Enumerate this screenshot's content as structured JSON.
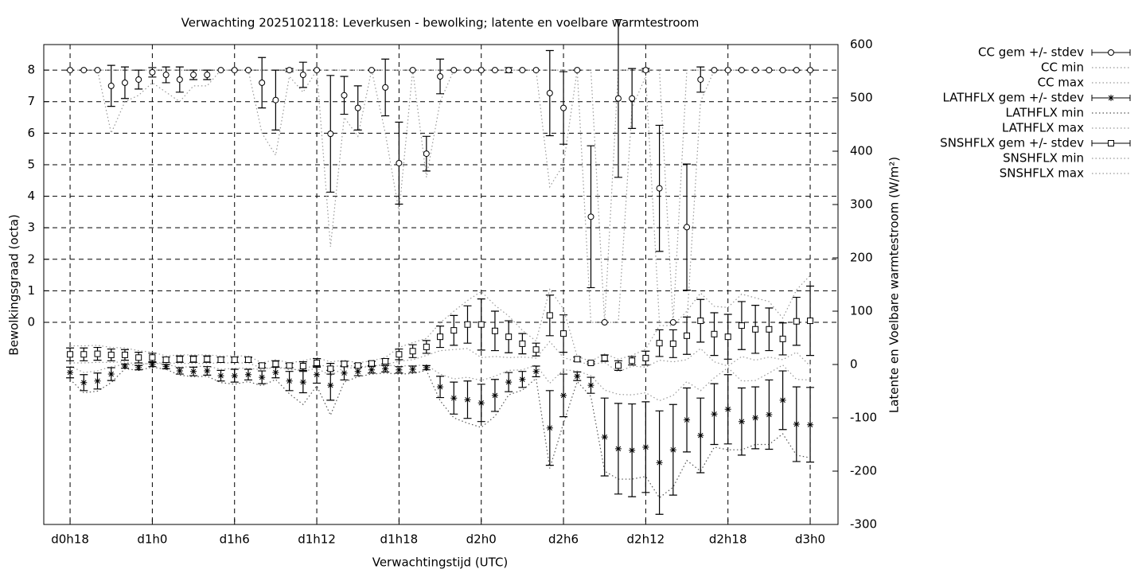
{
  "chart_data": {
    "type": "errorbar",
    "title": "Verwachting 2025102118: Leverkusen - bewolking; latente en voelbare warmtestroom",
    "xlabel": "Verwachtingstijd (UTC)",
    "ylabel": "Bewolkingsgraad (octa)",
    "y2label": "Latente en Voelbare warmtestroom (W/m²)",
    "grid": true,
    "legend": "outside-top-right",
    "x": [
      18,
      19,
      20,
      21,
      22,
      23,
      24,
      25,
      26,
      27,
      28,
      29,
      30,
      31,
      32,
      33,
      34,
      35,
      36,
      37,
      38,
      39,
      40,
      41,
      42,
      43,
      44,
      45,
      46,
      47,
      48,
      49,
      50,
      51,
      52,
      53,
      54,
      55,
      56,
      57,
      58,
      59,
      60,
      61,
      62,
      63,
      64,
      65,
      66,
      67,
      68,
      69,
      70,
      71,
      72
    ],
    "xlim": [
      16.08,
      74.03
    ],
    "xticks": [
      {
        "value": 18,
        "label": "d0h18"
      },
      {
        "value": 24,
        "label": "d1h0"
      },
      {
        "value": 30,
        "label": "d1h6"
      },
      {
        "value": 36,
        "label": "d1h12"
      },
      {
        "value": 42,
        "label": "d1h18"
      },
      {
        "value": 48,
        "label": "d2h0"
      },
      {
        "value": 54,
        "label": "d2h6"
      },
      {
        "value": 60,
        "label": "d2h12"
      },
      {
        "value": 66,
        "label": "d2h18"
      },
      {
        "value": 72,
        "label": "d3h0"
      }
    ],
    "ylim": [
      -6.41,
      8.81
    ],
    "yticks": [
      0,
      1,
      2,
      3,
      4,
      5,
      6,
      7,
      8
    ],
    "y2lim": [
      -300,
      600
    ],
    "y2ticks": [
      -300,
      -200,
      -100,
      0,
      100,
      200,
      300,
      400,
      500,
      600
    ],
    "series": [
      {
        "name": "CC gem +/- stdev",
        "color": "#000000",
        "marker": "circle",
        "axis": "y",
        "values": [
          8,
          8,
          8,
          7.5,
          7.6,
          7.7,
          7.93,
          7.85,
          7.7,
          7.85,
          7.85,
          8,
          8,
          8,
          7.6,
          7.05,
          8,
          7.85,
          8,
          5.98,
          7.2,
          6.8,
          8,
          7.45,
          5.05,
          8,
          5.35,
          7.8,
          8,
          8,
          8,
          8,
          8,
          8,
          8,
          7.27,
          6.8,
          8,
          3.35,
          0,
          7.1,
          7.1,
          8,
          4.25,
          0,
          3.02,
          7.7,
          8,
          8,
          8,
          8,
          8,
          8,
          8,
          8
        ],
        "errors": [
          0,
          0,
          0,
          0.65,
          0.5,
          0.3,
          0.15,
          0.25,
          0.4,
          0.15,
          0.15,
          0,
          0,
          0,
          0.8,
          0.95,
          0.05,
          0.4,
          0,
          1.85,
          0.6,
          0.7,
          0,
          0.9,
          1.3,
          0,
          0.55,
          0.55,
          0,
          0,
          0,
          0,
          0.08,
          0,
          0,
          1.35,
          1.15,
          0,
          2.25,
          0,
          2.5,
          0.95,
          0.05,
          2.0,
          0,
          2.0,
          0.4,
          0,
          0,
          0,
          0,
          0,
          0,
          0,
          0
        ]
      },
      {
        "name": "CC min",
        "color": "#999999",
        "style": "dotted",
        "axis": "y",
        "values": [
          8,
          8,
          8,
          6,
          7,
          7.2,
          7.6,
          7.3,
          7,
          7.5,
          7.5,
          8,
          8,
          8,
          6,
          5.3,
          7.8,
          7.3,
          8,
          2.4,
          6.5,
          5.9,
          8,
          6,
          3.5,
          8,
          4.6,
          7,
          8,
          8,
          8,
          8,
          8,
          8,
          8,
          4.3,
          5,
          8,
          0,
          0,
          0,
          6.8,
          7.8,
          0,
          0,
          0,
          7,
          8,
          8,
          8,
          8,
          8,
          8,
          8,
          8
        ]
      },
      {
        "name": "CC max",
        "color": "#999999",
        "style": "dotted",
        "axis": "y",
        "values": [
          8,
          8,
          8,
          8,
          8,
          8,
          8,
          8,
          8,
          8,
          8,
          8,
          8,
          8,
          8,
          8,
          8,
          8,
          8,
          8,
          8,
          8,
          8,
          8,
          8,
          8,
          8,
          8,
          8,
          8,
          8,
          8,
          8,
          8,
          8,
          8,
          8,
          8,
          8,
          0,
          8,
          8,
          8,
          8,
          0,
          8,
          8,
          8,
          8,
          8,
          8,
          8,
          8,
          8,
          8
        ]
      },
      {
        "name": "LATHFLX gem +/- stdev",
        "color": "#000000",
        "marker": "star",
        "axis": "y2",
        "values": [
          -15,
          -34,
          -31,
          -18,
          -3,
          -6,
          0,
          -4,
          -12,
          -13,
          -12,
          -21,
          -21,
          -19,
          -24,
          -15,
          -31,
          -33,
          -19,
          -39,
          -16,
          -13,
          -10,
          -8,
          -10,
          -9,
          -6,
          -42,
          -63,
          -66,
          -72,
          -58,
          -33,
          -28,
          -13,
          -119,
          -58,
          -22,
          -39,
          -136,
          -158,
          -161,
          -155,
          -184,
          -160,
          -104,
          -133,
          -93,
          -84,
          -107,
          -100,
          -94,
          -67,
          -112,
          -113
        ],
        "errors": [
          10,
          15,
          15,
          12,
          4,
          4,
          4,
          4,
          6,
          8,
          8,
          10,
          12,
          10,
          12,
          10,
          18,
          20,
          16,
          28,
          13,
          8,
          6,
          6,
          6,
          6,
          4,
          20,
          30,
          35,
          35,
          30,
          18,
          15,
          10,
          70,
          40,
          8,
          15,
          73,
          85,
          87,
          85,
          97,
          85,
          60,
          70,
          57,
          65,
          63,
          58,
          65,
          55,
          70,
          70
        ]
      },
      {
        "name": "LATHFLX min",
        "color": "#555555",
        "style": "dotted",
        "axis": "y2",
        "values": [
          -28,
          -53,
          -50,
          -34,
          -8,
          -11,
          -5,
          -9,
          -20,
          -23,
          -22,
          -34,
          -37,
          -32,
          -40,
          -28,
          -55,
          -75,
          -40,
          -95,
          -33,
          -23,
          -18,
          -16,
          -18,
          -17,
          -11,
          -68,
          -100,
          -110,
          -118,
          -97,
          -57,
          -48,
          -26,
          -195,
          -110,
          -32,
          -60,
          -200,
          -215,
          -215,
          -210,
          -250,
          -230,
          -180,
          -200,
          -155,
          -160,
          -160,
          -150,
          -150,
          -130,
          -170,
          -175
        ]
      },
      {
        "name": "LATHFLX max",
        "color": "#999999",
        "style": "dotted",
        "axis": "y2",
        "values": [
          -3,
          -15,
          -12,
          -4,
          0,
          -1,
          3,
          0,
          -5,
          -4,
          -3,
          -9,
          -7,
          -7,
          -10,
          -3,
          -10,
          -9,
          0,
          -5,
          -1,
          -4,
          -3,
          -1,
          -3,
          -2,
          -1,
          -18,
          -27,
          -24,
          -30,
          -22,
          -11,
          -10,
          -1,
          -35,
          -10,
          -12,
          -21,
          -48,
          -56,
          -57,
          -53,
          -68,
          -58,
          -32,
          -49,
          -25,
          -6,
          -31,
          -30,
          -16,
          -1,
          -28,
          -29
        ]
      },
      {
        "name": "SNSHFLX gem +/- stdev",
        "color": "#000000",
        "marker": "square",
        "axis": "y2",
        "values": [
          19,
          19,
          20,
          18,
          18,
          13,
          13,
          9,
          10,
          10,
          10,
          9,
          9,
          9,
          -2,
          1,
          -2,
          -3,
          3,
          -8,
          1,
          -2,
          2,
          6,
          19,
          25,
          33,
          52,
          64,
          75,
          75,
          63,
          52,
          39,
          28,
          92,
          58,
          10,
          3,
          12,
          -2,
          7,
          12,
          40,
          39,
          54,
          82,
          57,
          52,
          73,
          66,
          66,
          48,
          81,
          82
        ],
        "errors": [
          12,
          12,
          12,
          11,
          10,
          10,
          8,
          5,
          6,
          6,
          6,
          5,
          5,
          5,
          4,
          6,
          4,
          8,
          8,
          10,
          5,
          4,
          4,
          5,
          10,
          12,
          12,
          20,
          28,
          35,
          48,
          37,
          30,
          19,
          12,
          38,
          35,
          4,
          2,
          6,
          9,
          8,
          13,
          25,
          26,
          35,
          40,
          40,
          42,
          45,
          45,
          40,
          30,
          45,
          65
        ]
      },
      {
        "name": "SNSHFLX min",
        "color": "#999999",
        "style": "dotted",
        "axis": "y2",
        "values": [
          3,
          3,
          4,
          4,
          5,
          0,
          3,
          3,
          2,
          2,
          2,
          3,
          3,
          3,
          -7,
          -7,
          -7,
          -13,
          -7,
          -21,
          -6,
          -7,
          -3,
          0,
          6,
          9,
          17,
          26,
          28,
          30,
          13,
          15,
          13,
          14,
          12,
          43,
          13,
          5,
          0,
          4,
          -14,
          -3,
          -5,
          8,
          5,
          9,
          30,
          5,
          -3,
          15,
          8,
          14,
          9,
          23,
          -3
        ]
      },
      {
        "name": "SNSHFLX max",
        "color": "#999999",
        "style": "dotted",
        "axis": "y2",
        "values": [
          35,
          35,
          36,
          32,
          31,
          26,
          23,
          16,
          18,
          18,
          18,
          16,
          16,
          16,
          3,
          9,
          3,
          7,
          13,
          5,
          8,
          3,
          7,
          13,
          32,
          41,
          49,
          78,
          100,
          120,
          137,
          111,
          91,
          64,
          44,
          141,
          104,
          15,
          6,
          20,
          10,
          17,
          29,
          73,
          73,
          100,
          134,
          109,
          107,
          132,
          125,
          118,
          87,
          140,
          167
        ]
      }
    ]
  }
}
